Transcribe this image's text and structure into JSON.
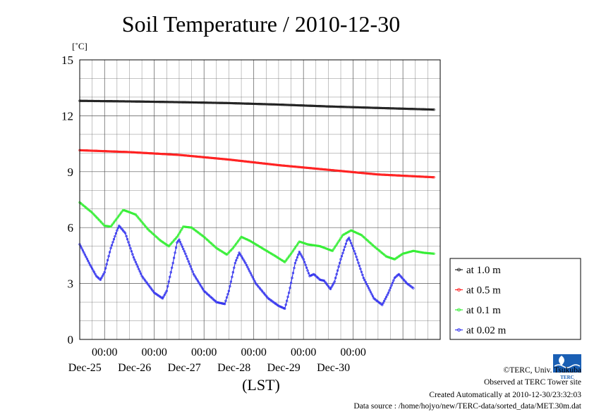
{
  "chart_data": {
    "type": "line",
    "title": "Soil Temperature / 2010-12-30",
    "ylabel": "[˚C]",
    "xlabel": "(LST)",
    "ylim": [
      0,
      15
    ],
    "yticks": [
      "0",
      "3",
      "6",
      "9",
      "12",
      "15"
    ],
    "x_tick_time_label": "00:00",
    "x_date_labels": [
      "Dec-25",
      "Dec-26",
      "Dec-27",
      "Dec-28",
      "Dec-29",
      "Dec-30"
    ],
    "grid": true,
    "legend_position": "right",
    "series": [
      {
        "name": "at 1.0 m",
        "color": "#222222",
        "points": [
          [
            0,
            12.8
          ],
          [
            24,
            12.77
          ],
          [
            48,
            12.73
          ],
          [
            72,
            12.68
          ],
          [
            96,
            12.6
          ],
          [
            120,
            12.5
          ],
          [
            144,
            12.42
          ],
          [
            171,
            12.33
          ]
        ]
      },
      {
        "name": "at 0.5 m",
        "color": "#ff2020",
        "points": [
          [
            0,
            10.15
          ],
          [
            24,
            10.05
          ],
          [
            48,
            9.9
          ],
          [
            72,
            9.65
          ],
          [
            96,
            9.35
          ],
          [
            120,
            9.1
          ],
          [
            144,
            8.85
          ],
          [
            171,
            8.7
          ]
        ]
      },
      {
        "name": "at 0.1 m",
        "color": "#33ee33",
        "points": [
          [
            0,
            7.35
          ],
          [
            6,
            6.8
          ],
          [
            12,
            6.1
          ],
          [
            15,
            6.05
          ],
          [
            21,
            6.95
          ],
          [
            27,
            6.7
          ],
          [
            33,
            5.9
          ],
          [
            39,
            5.3
          ],
          [
            43,
            5.0
          ],
          [
            47,
            5.5
          ],
          [
            50,
            6.05
          ],
          [
            54,
            6.0
          ],
          [
            60,
            5.5
          ],
          [
            66,
            4.9
          ],
          [
            71,
            4.55
          ],
          [
            74,
            4.9
          ],
          [
            78,
            5.5
          ],
          [
            82,
            5.3
          ],
          [
            88,
            4.9
          ],
          [
            94,
            4.5
          ],
          [
            99,
            4.15
          ],
          [
            102,
            4.6
          ],
          [
            106,
            5.25
          ],
          [
            110,
            5.1
          ],
          [
            116,
            5.0
          ],
          [
            122,
            4.75
          ],
          [
            127,
            5.6
          ],
          [
            131,
            5.85
          ],
          [
            136,
            5.6
          ],
          [
            142,
            5.0
          ],
          [
            148,
            4.45
          ],
          [
            152,
            4.3
          ],
          [
            156,
            4.6
          ],
          [
            161,
            4.75
          ],
          [
            166,
            4.65
          ],
          [
            171,
            4.6
          ]
        ]
      },
      {
        "name": "at 0.02 m",
        "color": "#3333ee",
        "points": [
          [
            0,
            5.1
          ],
          [
            5,
            4.0
          ],
          [
            8,
            3.4
          ],
          [
            10,
            3.2
          ],
          [
            12,
            3.6
          ],
          [
            15,
            4.9
          ],
          [
            18,
            5.85
          ],
          [
            19,
            6.1
          ],
          [
            22,
            5.7
          ],
          [
            26,
            4.4
          ],
          [
            30,
            3.4
          ],
          [
            36,
            2.5
          ],
          [
            40,
            2.2
          ],
          [
            42,
            2.6
          ],
          [
            45,
            4.1
          ],
          [
            47,
            5.2
          ],
          [
            48,
            5.35
          ],
          [
            51,
            4.6
          ],
          [
            55,
            3.5
          ],
          [
            60,
            2.6
          ],
          [
            66,
            2.0
          ],
          [
            70,
            1.9
          ],
          [
            72,
            2.6
          ],
          [
            75,
            4.1
          ],
          [
            77,
            4.65
          ],
          [
            80,
            4.1
          ],
          [
            85,
            3.0
          ],
          [
            91,
            2.2
          ],
          [
            96,
            1.8
          ],
          [
            99,
            1.65
          ],
          [
            101,
            2.5
          ],
          [
            104,
            4.1
          ],
          [
            106,
            4.7
          ],
          [
            108,
            4.3
          ],
          [
            111,
            3.4
          ],
          [
            113,
            3.5
          ],
          [
            116,
            3.2
          ],
          [
            118,
            3.15
          ],
          [
            121,
            2.7
          ],
          [
            123,
            3.1
          ],
          [
            126,
            4.3
          ],
          [
            129,
            5.3
          ],
          [
            130,
            5.45
          ],
          [
            133,
            4.6
          ],
          [
            137,
            3.3
          ],
          [
            142,
            2.2
          ],
          [
            146,
            1.85
          ],
          [
            149,
            2.5
          ],
          [
            152,
            3.3
          ],
          [
            154,
            3.5
          ],
          [
            158,
            3.0
          ],
          [
            161,
            2.75
          ]
        ]
      }
    ]
  },
  "credits": {
    "copyright": "©TERC, Univ. Tsukuba",
    "observed": "Observed at TERC Tower site",
    "created": "Created Automatically at 2010-12-30/23:32:03",
    "source": "Data source : /home/hojyo/new/TERC-data/sorted_data/MET.30m.dat"
  },
  "logo_text": "TERC"
}
